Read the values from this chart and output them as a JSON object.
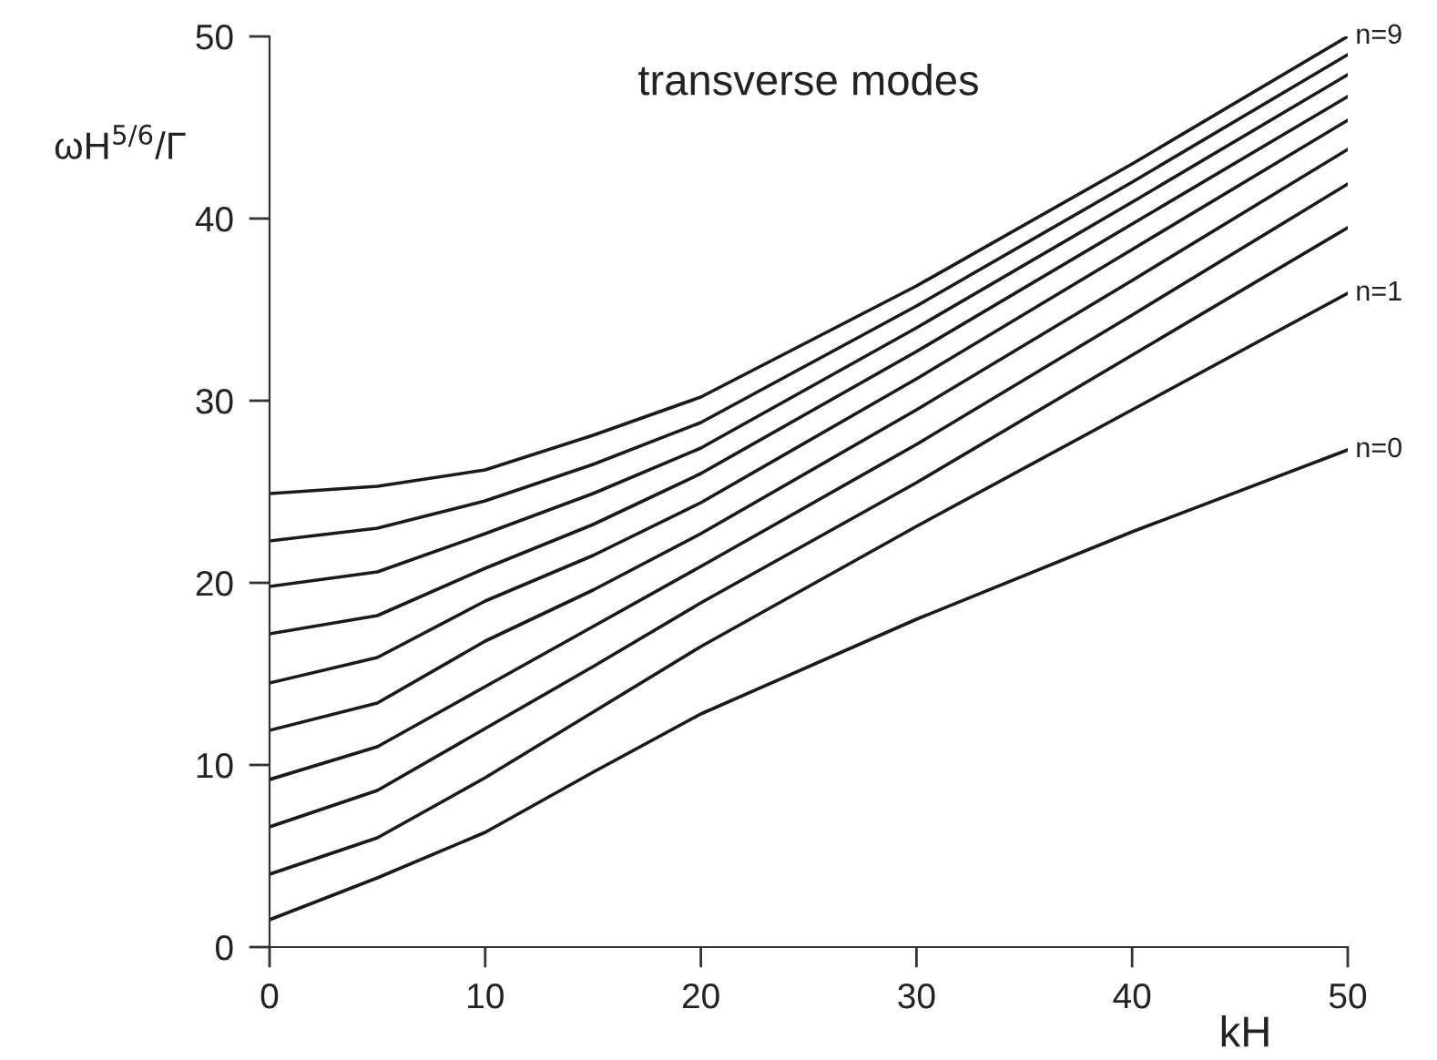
{
  "chart_data": {
    "type": "line",
    "title": "transverse modes",
    "xlabel": "kH",
    "ylabel": "ωH$^{5/6}$/Γ",
    "x": [
      0,
      5,
      10,
      15,
      20,
      30,
      40,
      50
    ],
    "series": [
      {
        "name": "n=0",
        "color": "#1a1a1a",
        "values": [
          1.5,
          3.8,
          6.3,
          9.6,
          12.8,
          18.0,
          22.8,
          27.3
        ]
      },
      {
        "name": "n=1",
        "color": "#1a1a1a",
        "values": [
          4.0,
          6.0,
          9.3,
          12.9,
          16.5,
          23.1,
          29.5,
          35.9
        ]
      },
      {
        "color": "#1a1a1a",
        "values": [
          6.6,
          8.6,
          12.0,
          15.4,
          18.9,
          25.5,
          32.5,
          39.5
        ]
      },
      {
        "color": "#1a1a1a",
        "values": [
          9.2,
          11.0,
          14.3,
          17.6,
          20.9,
          27.6,
          34.7,
          41.9
        ]
      },
      {
        "color": "#1a1a1a",
        "values": [
          11.9,
          13.4,
          16.8,
          19.6,
          22.7,
          29.5,
          36.6,
          43.8
        ]
      },
      {
        "color": "#1a1a1a",
        "values": [
          14.5,
          15.9,
          19.0,
          21.5,
          24.4,
          31.2,
          38.3,
          45.4
        ]
      },
      {
        "color": "#1a1a1a",
        "values": [
          17.2,
          18.2,
          20.8,
          23.2,
          26.0,
          32.7,
          39.7,
          46.7
        ]
      },
      {
        "color": "#1a1a1a",
        "values": [
          19.8,
          20.6,
          22.7,
          24.9,
          27.4,
          34.0,
          40.9,
          47.9
        ]
      },
      {
        "color": "#1a1a1a",
        "values": [
          22.3,
          23.0,
          24.5,
          26.5,
          28.8,
          35.2,
          42.0,
          49.0
        ]
      },
      {
        "name": "n=9",
        "color": "#1a1a1a",
        "values": [
          24.9,
          25.3,
          26.2,
          28.1,
          30.2,
          36.3,
          43.0,
          50.0
        ]
      }
    ],
    "xlim": [
      0,
      50
    ],
    "ylim": [
      0,
      50
    ],
    "xticks": [
      0,
      10,
      20,
      30,
      40,
      50
    ],
    "yticks": [
      0,
      10,
      20,
      30,
      40,
      50
    ],
    "grid": false,
    "legend": false,
    "marker": "none",
    "line_style": "solid"
  }
}
